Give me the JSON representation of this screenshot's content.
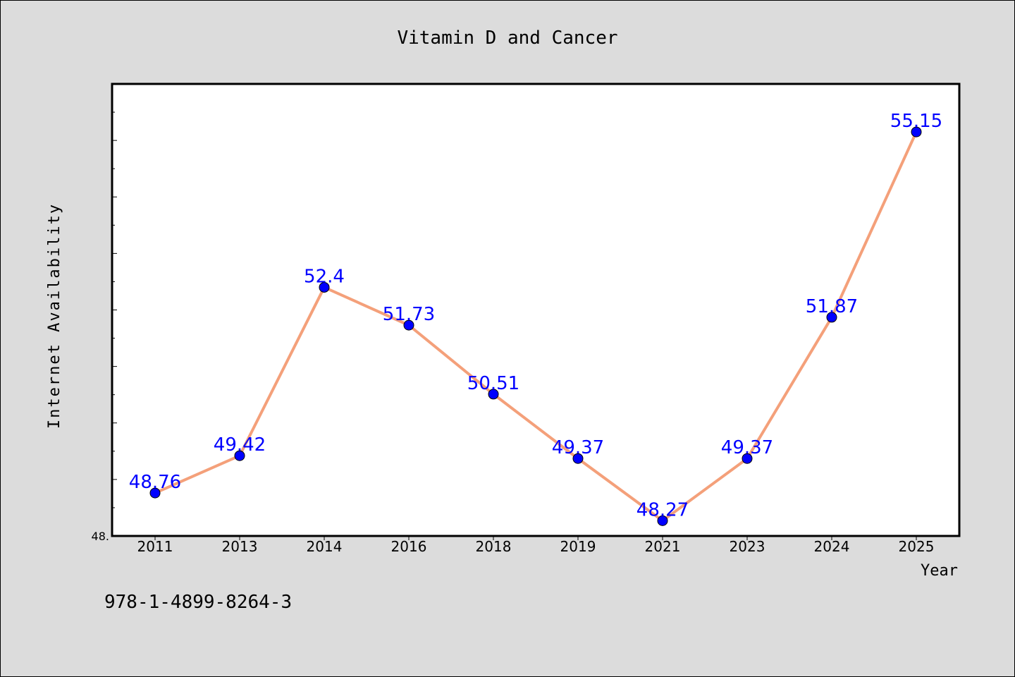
{
  "chart_data": {
    "type": "line",
    "title": "Vitamin D and Cancer",
    "xlabel": "Year",
    "ylabel": "Internet Availability",
    "categories": [
      "2011",
      "2013",
      "2014",
      "2016",
      "2018",
      "2019",
      "2021",
      "2023",
      "2024",
      "2025"
    ],
    "series": [
      {
        "values": [
          48.76,
          49.42,
          52.4,
          51.73,
          50.51,
          49.37,
          48.27,
          49.37,
          51.87,
          55.15
        ],
        "data_labels": [
          "48.76",
          "49.42",
          "52.4",
          "51.73",
          "50.51",
          "49.37",
          "48.27",
          "49.37",
          "51.87",
          "55.15"
        ]
      }
    ],
    "ylim": [
      48,
      56
    ],
    "y_tick_labels": [
      "48."
    ],
    "grid": false,
    "line_color": "#f4a07a",
    "marker_color": "#0000ff",
    "label_color": "#0000ff"
  },
  "footer": {
    "isbn": "978-1-4899-8264-3"
  }
}
